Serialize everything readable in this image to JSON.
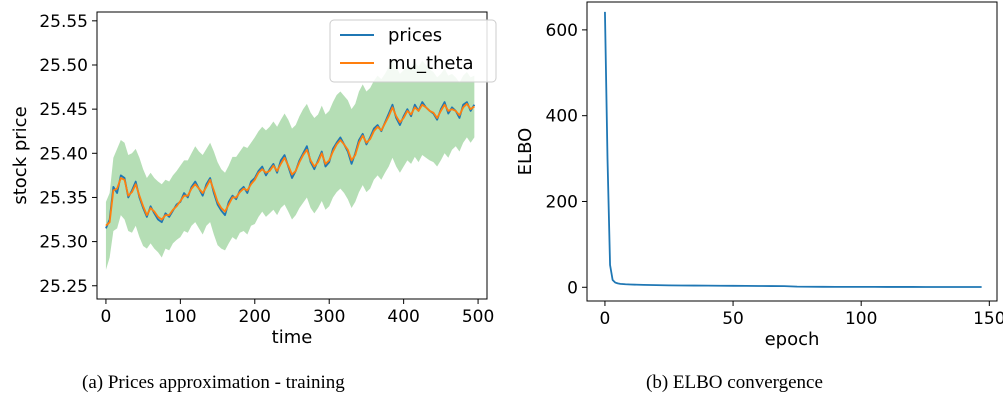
{
  "captions": {
    "a": "(a)  Prices approximation - training",
    "b": "(b) ELBO convergence"
  },
  "chart_data": [
    {
      "type": "line",
      "title": "",
      "xlabel": "time",
      "ylabel": "stock price",
      "xlim": [
        -12,
        512
      ],
      "ylim": [
        25.235,
        25.56
      ],
      "xticks": [
        0,
        100,
        200,
        300,
        400,
        500
      ],
      "yticks": [
        25.25,
        25.3,
        25.35,
        25.4,
        25.45,
        25.5,
        25.55
      ],
      "ytick_labels": [
        "25.25",
        "25.30",
        "25.35",
        "25.40",
        "25.45",
        "25.50",
        "25.55"
      ],
      "grid": false,
      "legend": "top-right",
      "x": [
        0,
        5,
        10,
        15,
        20,
        25,
        30,
        35,
        40,
        45,
        50,
        55,
        60,
        65,
        70,
        75,
        80,
        85,
        90,
        95,
        100,
        105,
        110,
        115,
        120,
        125,
        130,
        135,
        140,
        145,
        150,
        155,
        160,
        165,
        170,
        175,
        180,
        185,
        190,
        195,
        200,
        205,
        210,
        215,
        220,
        225,
        230,
        235,
        240,
        245,
        250,
        255,
        260,
        265,
        270,
        275,
        280,
        285,
        290,
        295,
        300,
        305,
        310,
        315,
        320,
        325,
        330,
        335,
        340,
        345,
        350,
        355,
        360,
        365,
        370,
        375,
        380,
        385,
        390,
        395,
        400,
        405,
        410,
        415,
        420,
        425,
        430,
        435,
        440,
        445,
        450,
        455,
        460,
        465,
        470,
        475,
        480,
        485,
        490,
        495
      ],
      "series": [
        {
          "name": "prices",
          "color": "#1f77b4",
          "values": [
            25.315,
            25.325,
            25.362,
            25.355,
            25.375,
            25.372,
            25.35,
            25.358,
            25.368,
            25.35,
            25.338,
            25.328,
            25.34,
            25.332,
            25.325,
            25.322,
            25.332,
            25.328,
            25.335,
            25.342,
            25.345,
            25.355,
            25.35,
            25.362,
            25.368,
            25.36,
            25.352,
            25.365,
            25.372,
            25.355,
            25.342,
            25.335,
            25.33,
            25.345,
            25.352,
            25.348,
            25.358,
            25.362,
            25.355,
            25.368,
            25.372,
            25.38,
            25.385,
            25.375,
            25.382,
            25.388,
            25.378,
            25.392,
            25.398,
            25.385,
            25.372,
            25.38,
            25.392,
            25.4,
            25.408,
            25.39,
            25.382,
            25.392,
            25.402,
            25.385,
            25.39,
            25.405,
            25.412,
            25.418,
            25.41,
            25.402,
            25.388,
            25.4,
            25.415,
            25.422,
            25.41,
            25.418,
            25.428,
            25.432,
            25.425,
            25.435,
            25.445,
            25.455,
            25.44,
            25.432,
            25.442,
            25.45,
            25.442,
            25.455,
            25.448,
            25.458,
            25.452,
            25.448,
            25.445,
            25.438,
            25.45,
            25.458,
            25.445,
            25.452,
            25.448,
            25.44,
            25.455,
            25.458,
            25.448,
            25.455
          ]
        },
        {
          "name": "mu_theta",
          "color": "#ff7f0e",
          "values": [
            25.318,
            25.322,
            25.358,
            25.36,
            25.372,
            25.37,
            25.352,
            25.356,
            25.365,
            25.352,
            25.34,
            25.33,
            25.338,
            25.334,
            25.328,
            25.325,
            25.33,
            25.33,
            25.336,
            25.34,
            25.346,
            25.352,
            25.352,
            25.36,
            25.365,
            25.36,
            25.355,
            25.362,
            25.37,
            25.358,
            25.345,
            25.338,
            25.334,
            25.342,
            25.35,
            25.35,
            25.356,
            25.36,
            25.358,
            25.365,
            25.37,
            25.378,
            25.382,
            25.378,
            25.38,
            25.386,
            25.38,
            25.388,
            25.395,
            25.386,
            25.376,
            25.38,
            25.39,
            25.398,
            25.404,
            25.392,
            25.385,
            25.39,
            25.4,
            25.388,
            25.392,
            25.402,
            25.41,
            25.415,
            25.41,
            25.404,
            25.392,
            25.398,
            25.412,
            25.42,
            25.412,
            25.416,
            25.425,
            25.43,
            25.426,
            25.434,
            25.442,
            25.452,
            25.442,
            25.435,
            25.44,
            25.448,
            25.444,
            25.452,
            25.448,
            25.455,
            25.452,
            25.448,
            25.446,
            25.44,
            25.448,
            25.455,
            25.448,
            25.45,
            25.448,
            25.443,
            25.452,
            25.456,
            25.45,
            25.453
          ]
        }
      ],
      "band": {
        "color": "#2ca02c",
        "opacity": 0.35,
        "lower": [
          25.268,
          25.282,
          25.312,
          25.315,
          25.33,
          25.325,
          25.312,
          25.31,
          25.318,
          25.305,
          25.295,
          25.292,
          25.298,
          25.292,
          25.288,
          25.282,
          25.292,
          25.29,
          25.298,
          25.302,
          25.305,
          25.312,
          25.31,
          25.318,
          25.322,
          25.315,
          25.308,
          25.318,
          25.322,
          25.308,
          25.296,
          25.292,
          25.29,
          25.298,
          25.305,
          25.302,
          25.31,
          25.312,
          25.308,
          25.318,
          25.32,
          25.328,
          25.334,
          25.328,
          25.332,
          25.336,
          25.33,
          25.338,
          25.342,
          25.334,
          25.325,
          25.33,
          25.338,
          25.344,
          25.35,
          25.338,
          25.332,
          25.338,
          25.346,
          25.336,
          25.34,
          25.35,
          25.356,
          25.36,
          25.355,
          25.348,
          25.338,
          25.345,
          25.356,
          25.364,
          25.356,
          25.36,
          25.37,
          25.375,
          25.37,
          25.378,
          25.385,
          25.395,
          25.385,
          25.378,
          25.385,
          25.392,
          25.388,
          25.396,
          25.39,
          25.398,
          25.395,
          25.392,
          25.39,
          25.385,
          25.392,
          25.4,
          25.395,
          25.404,
          25.408,
          25.402,
          25.412,
          25.418,
          25.412,
          25.418
        ],
        "upper": [
          25.345,
          25.355,
          25.395,
          25.405,
          25.415,
          25.412,
          25.398,
          25.4,
          25.405,
          25.395,
          25.382,
          25.372,
          25.378,
          25.372,
          25.368,
          25.365,
          25.37,
          25.368,
          25.375,
          25.38,
          25.386,
          25.392,
          25.392,
          25.4,
          25.408,
          25.402,
          25.398,
          25.405,
          25.412,
          25.402,
          25.39,
          25.382,
          25.378,
          25.386,
          25.396,
          25.396,
          25.402,
          25.408,
          25.406,
          25.412,
          25.418,
          25.425,
          25.43,
          25.426,
          25.43,
          25.436,
          25.43,
          25.438,
          25.445,
          25.438,
          25.428,
          25.432,
          25.442,
          25.45,
          25.456,
          25.446,
          25.44,
          25.444,
          25.454,
          25.444,
          25.448,
          25.458,
          25.466,
          25.47,
          25.465,
          25.46,
          25.45,
          25.456,
          25.47,
          25.478,
          25.47,
          25.474,
          25.482,
          25.488,
          25.484,
          25.49,
          25.498,
          25.506,
          25.498,
          25.49,
          25.494,
          25.5,
          25.496,
          25.504,
          25.498,
          25.505,
          25.5,
          25.495,
          25.492,
          25.486,
          25.49,
          25.496,
          25.488,
          25.49,
          25.486,
          25.48,
          25.488,
          25.492,
          25.486,
          25.488
        ]
      }
    },
    {
      "type": "line",
      "title": "",
      "xlabel": "epoch",
      "ylabel": "ELBO",
      "xlim": [
        -7,
        153
      ],
      "ylim": [
        -32,
        665
      ],
      "xticks": [
        0,
        50,
        100,
        150
      ],
      "yticks": [
        0,
        200,
        400,
        600
      ],
      "grid": false,
      "series": [
        {
          "color": "#1f77b4",
          "x": [
            0,
            1,
            2,
            3,
            4,
            5,
            6,
            8,
            10,
            15,
            20,
            25,
            30,
            35,
            40,
            45,
            50,
            55,
            60,
            65,
            70,
            75,
            80,
            85,
            90,
            95,
            100,
            105,
            110,
            115,
            120,
            125,
            130,
            135,
            140,
            145,
            147
          ],
          "values": [
            642,
            300,
            52,
            17,
            11,
            9,
            8,
            7,
            6.5,
            5.5,
            5,
            4.5,
            4.2,
            4,
            3.8,
            3.6,
            3.4,
            3.2,
            3,
            2.8,
            2.6,
            1.5,
            1.2,
            1.1,
            1,
            1,
            0.9,
            0.9,
            0.8,
            0.8,
            0.8,
            0.7,
            0.7,
            0.7,
            0.6,
            0.6,
            0.6
          ]
        }
      ]
    }
  ]
}
